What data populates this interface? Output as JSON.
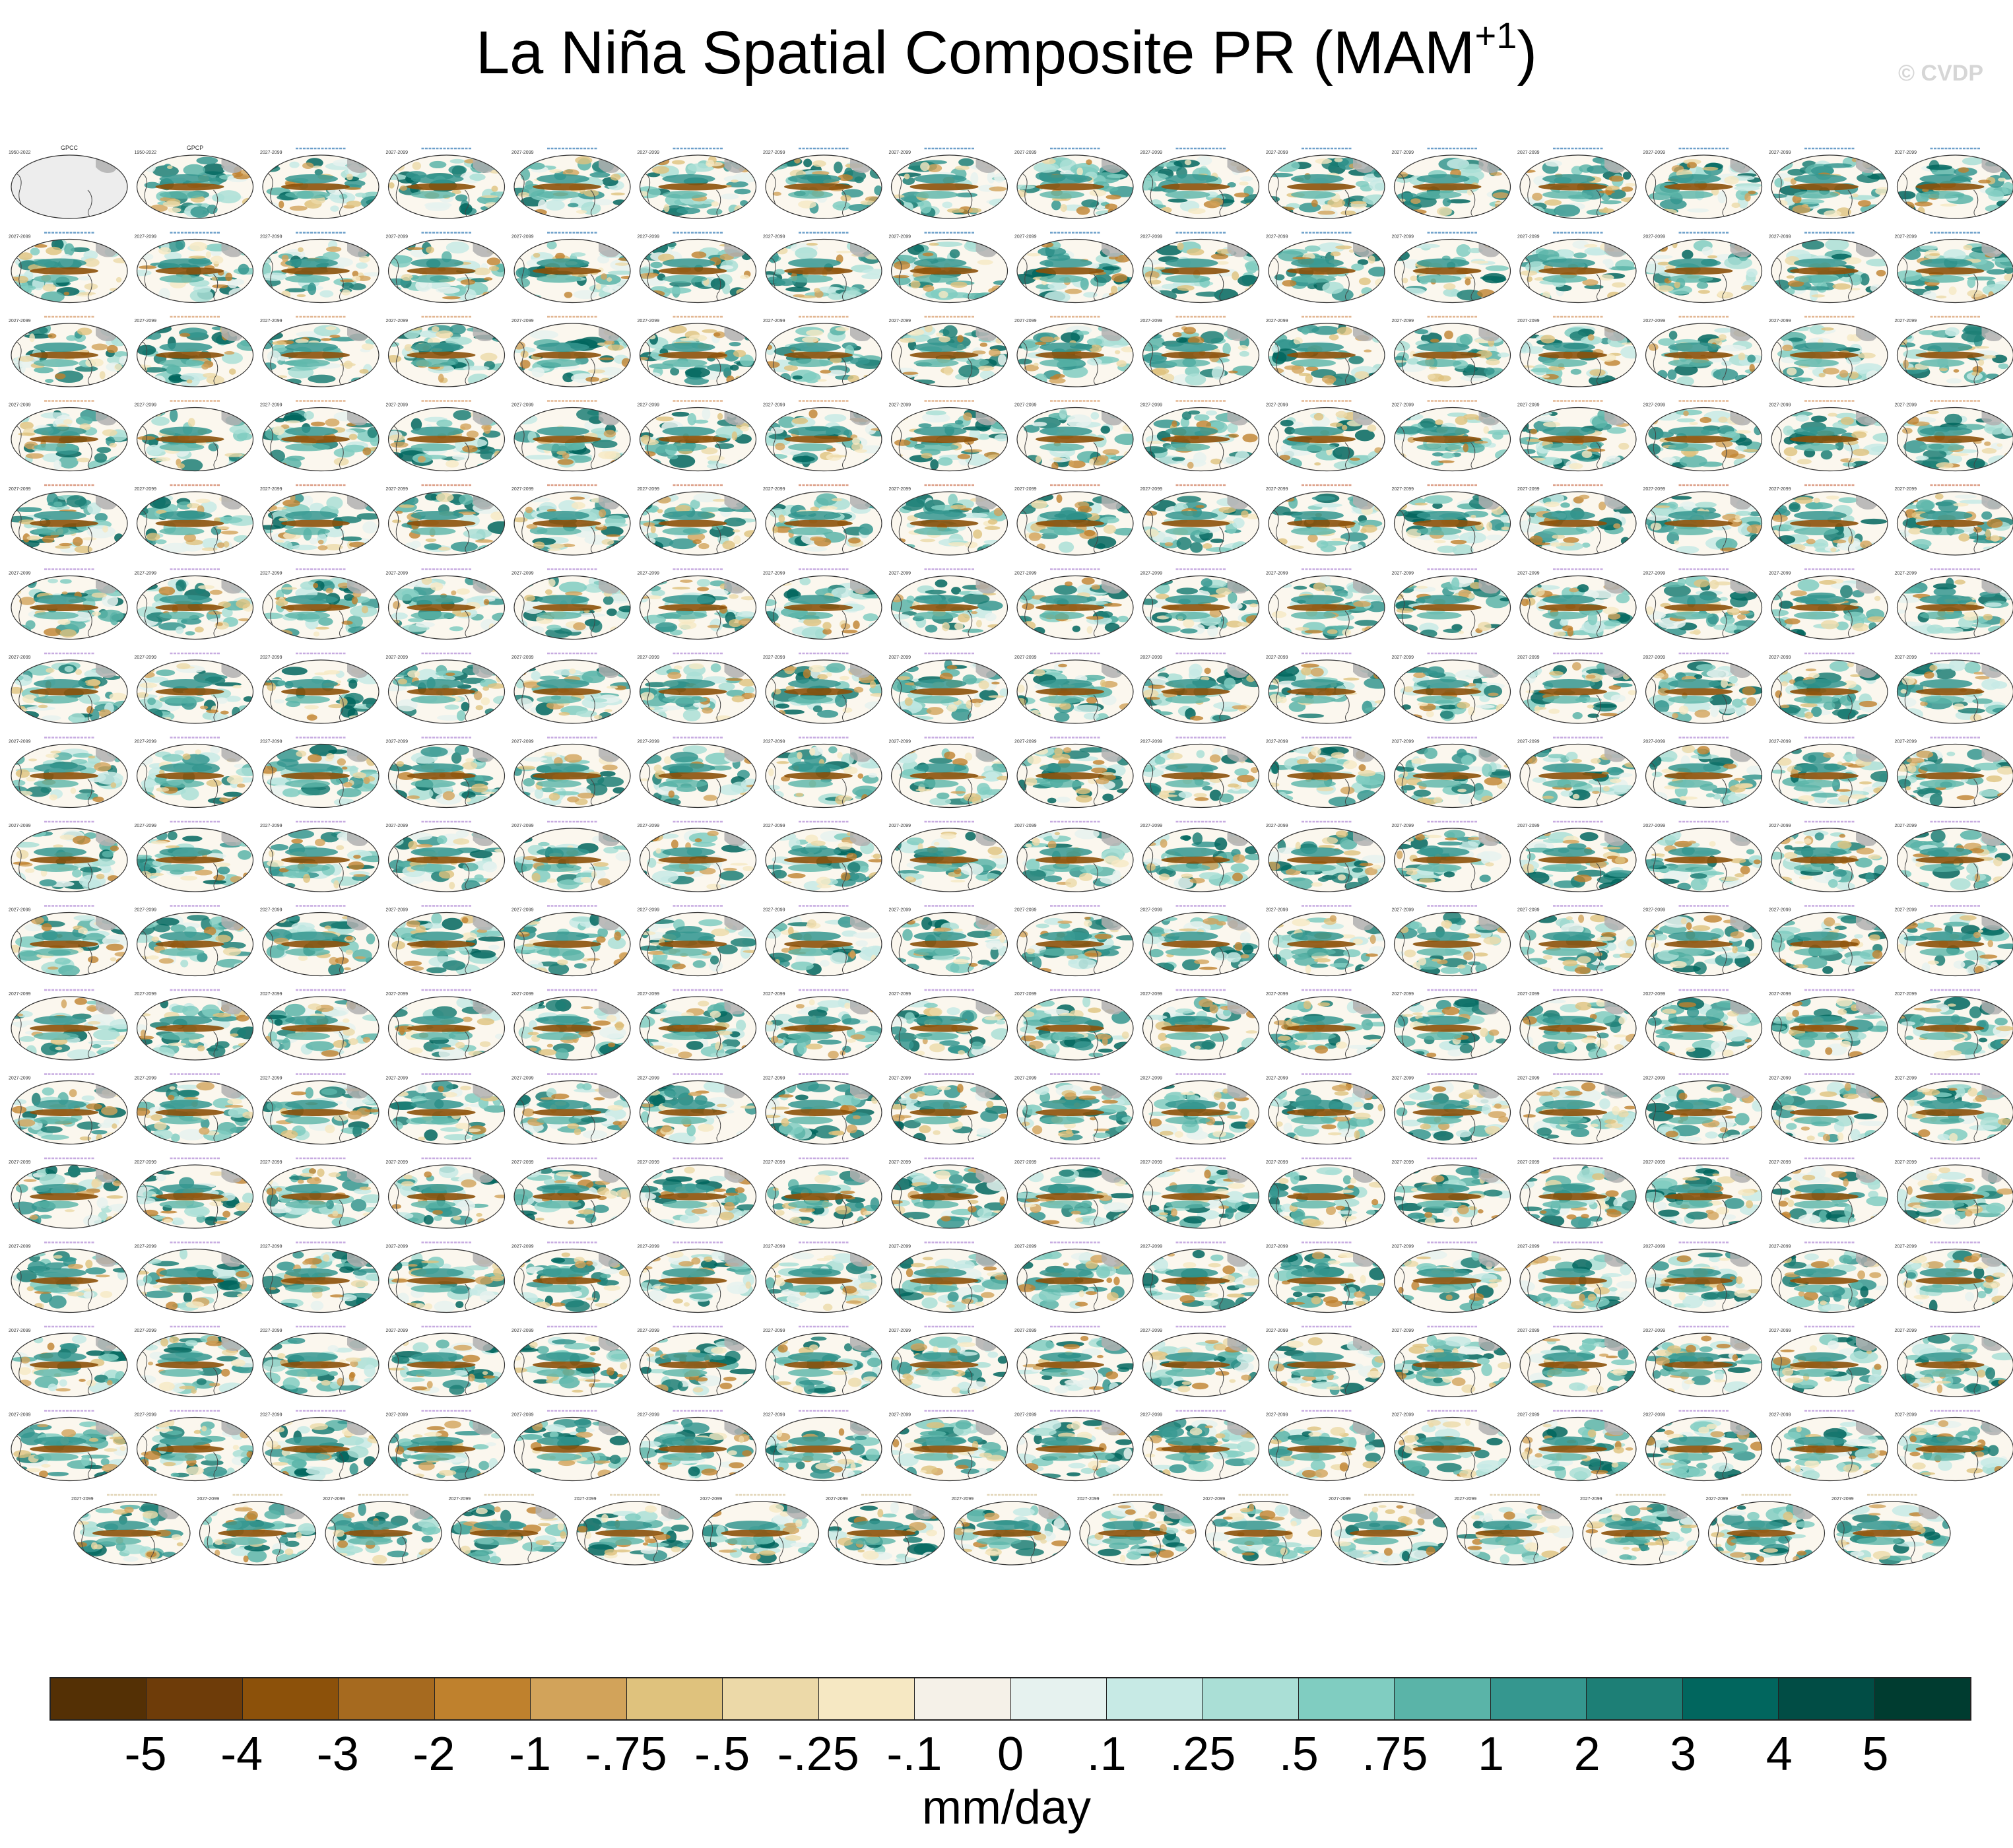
{
  "title": {
    "main": "La Niña Spatial Composite PR (MAM",
    "superscript": "+1",
    "close": ")"
  },
  "copyright": "© CVDP",
  "panels": {
    "rows": 17,
    "columns": 16,
    "last_row_count": 15,
    "observation_titles": [
      "GPCC",
      "GPCP"
    ],
    "observation_period": "1950-2022",
    "model_period": "2027-2099",
    "model_title_colors": [
      "#3a7fb8",
      "#3a7fb8",
      "#d9a070",
      "#d9a070",
      "#d07a5a",
      "#b58fd6",
      "#b58fd6",
      "#b58fd6",
      "#b58fd6",
      "#b58fd6",
      "#b58fd6",
      "#b58fd6",
      "#b58fd6",
      "#b58fd6",
      "#b58fd6",
      "#b58fd6",
      "#d9c8a0"
    ],
    "land_color": "#b0b0b0",
    "ocean_color": "#fbf7ee"
  },
  "colorbar": {
    "labels": [
      "-5",
      "-4",
      "-3",
      "-2",
      "-1",
      "-.75",
      "-.5",
      "-.25",
      "-.1",
      "0",
      ".1",
      ".25",
      ".5",
      ".75",
      "1",
      "2",
      "3",
      "4",
      "5"
    ],
    "colors": [
      "#543005",
      "#6e3c09",
      "#8c510a",
      "#a66a1f",
      "#bf812d",
      "#d2a35a",
      "#dfc27d",
      "#ecd9a8",
      "#f6e8c3",
      "#f5f1e8",
      "#e6f2ef",
      "#c7eae5",
      "#aadfd6",
      "#80cdc1",
      "#5ab4a8",
      "#35978f",
      "#1d7f76",
      "#01665e",
      "#014d45",
      "#003c30"
    ],
    "units": "mm/day"
  }
}
